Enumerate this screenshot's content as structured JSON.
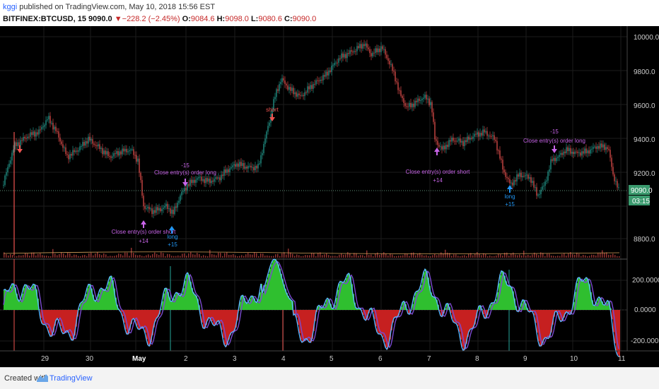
{
  "header": {
    "user": "kggi",
    "published_text": " published on TradingView.com, May 10, 2018 15:56 EST",
    "symbol": "BITFINEX:BTCUSD, 15",
    "last": "9090.0",
    "change_arrow": "▼",
    "change": "−228.2 (−2.45%)",
    "o_label": "O:",
    "o": "9084.6",
    "h_label": "H:",
    "h": "9098.0",
    "l_label": "L:",
    "l": "9080.6",
    "c_label": "C:",
    "c": "9090.0"
  },
  "price_axis": {
    "labels": [
      "10000.0",
      "9800.0",
      "9600.0",
      "9400.0",
      "9200.0",
      "8800.0"
    ],
    "current_price": "9090.0",
    "countdown": "03:15"
  },
  "osc_axis": {
    "labels": [
      "200.0000",
      "0.0000",
      "-200.0000"
    ]
  },
  "time_axis": {
    "labels": [
      "29",
      "30",
      "May",
      "2",
      "3",
      "4",
      "5",
      "6",
      "7",
      "8",
      "9",
      "10",
      "11"
    ]
  },
  "annotations": [
    {
      "text": "Close entry(s) order short",
      "amount": "+14"
    },
    {
      "text": "long",
      "amount": "+15"
    },
    {
      "text": "Close entry(s) order long",
      "amount": "-15"
    },
    {
      "text": "Close entry(s) order short",
      "amount": "+14"
    },
    {
      "text": "long",
      "amount": "+15"
    },
    {
      "text": "Close entry(s) order long",
      "amount": "-15"
    },
    {
      "text": "short",
      "amount": ""
    }
  ],
  "colors": {
    "up": "#26a69a",
    "down": "#ef5350",
    "signal_purple": "#c864e8",
    "signal_blue": "#2196f3",
    "price_label_bg": "#3a9a6e"
  },
  "footer": {
    "created_with": "Created with",
    "brand": "TradingView"
  }
}
